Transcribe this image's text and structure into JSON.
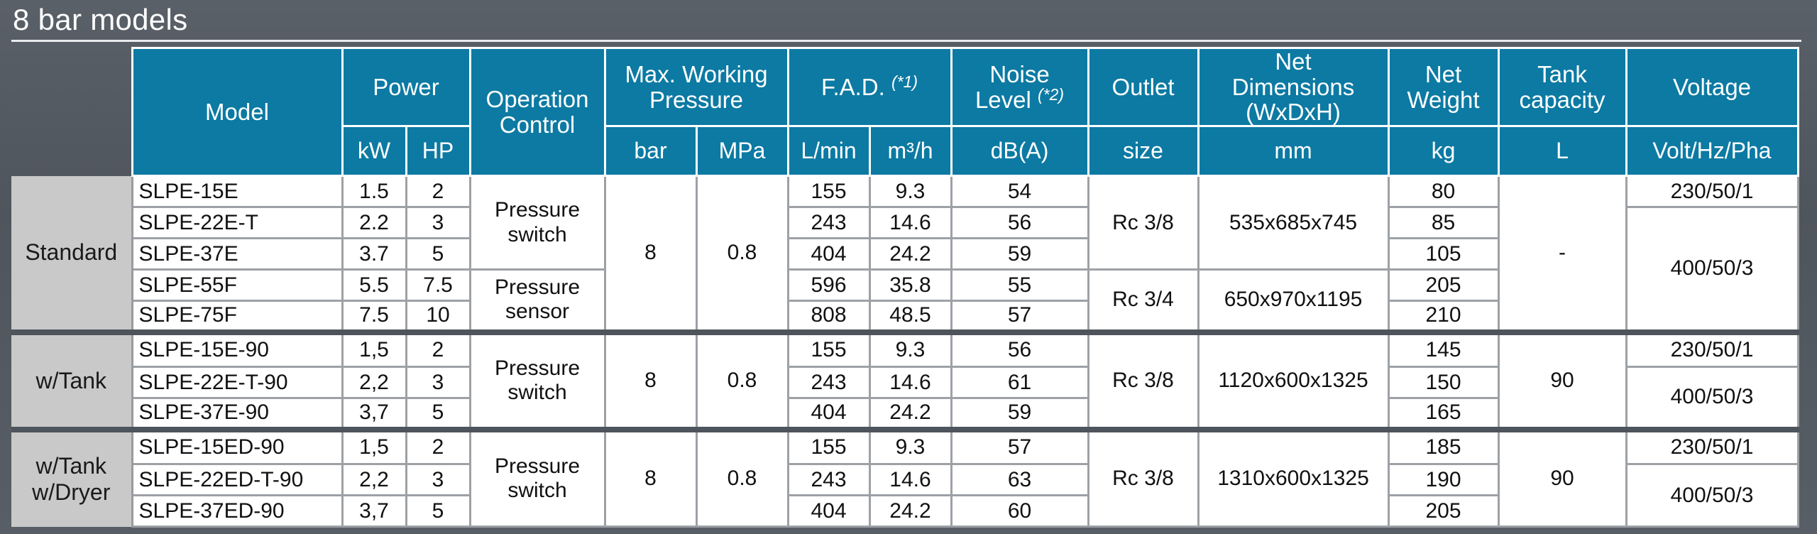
{
  "title": "8 bar models",
  "headers": {
    "model": "Model",
    "power": "Power",
    "power_kw": "kW",
    "power_hp": "HP",
    "operation_control": [
      "Operation",
      "Control"
    ],
    "max_working_pressure": [
      "Max. Working",
      "Pressure"
    ],
    "pressure_bar": "bar",
    "pressure_mpa": "MPa",
    "fad": "F.A.D.",
    "fad_note": "(*1)",
    "fad_lmin": "L/min",
    "fad_m3h": "m³/h",
    "noise": [
      "Noise",
      "Level"
    ],
    "noise_note": "(*2)",
    "noise_unit": "dB(A)",
    "outlet": "Outlet",
    "outlet_unit": "size",
    "net_dimensions": [
      "Net",
      "Dimensions",
      "(WxDxH)"
    ],
    "dimensions_unit": "mm",
    "net_weight": [
      "Net",
      "Weight"
    ],
    "weight_unit": "kg",
    "tank_capacity": [
      "Tank",
      "capacity"
    ],
    "tank_unit": "L",
    "voltage": "Voltage",
    "voltage_unit": "Volt/Hz/Pha"
  },
  "groups": {
    "standard": {
      "label": "Standard",
      "rows": [
        {
          "model": "SLPE-15E",
          "kw": "1.5",
          "hp": "2",
          "lmin": "155",
          "m3h": "9.3",
          "noise": "54",
          "weight": "80"
        },
        {
          "model": "SLPE-22E-T",
          "kw": "2.2",
          "hp": "3",
          "lmin": "243",
          "m3h": "14.6",
          "noise": "56",
          "weight": "85"
        },
        {
          "model": "SLPE-37E",
          "kw": "3.7",
          "hp": "5",
          "lmin": "404",
          "m3h": "24.2",
          "noise": "59",
          "weight": "105"
        },
        {
          "model": "SLPE-55F",
          "kw": "5.5",
          "hp": "7.5",
          "lmin": "596",
          "m3h": "35.8",
          "noise": "55",
          "weight": "205"
        },
        {
          "model": "SLPE-75F",
          "kw": "7.5",
          "hp": "10",
          "lmin": "808",
          "m3h": "48.5",
          "noise": "57",
          "weight": "210"
        }
      ],
      "control_switch": [
        "Pressure",
        "switch"
      ],
      "control_sensor": [
        "Pressure",
        "sensor"
      ],
      "bar": "8",
      "mpa": "0.8",
      "outlet_a": "Rc 3/8",
      "outlet_b": "Rc 3/4",
      "dims_a": "535x685x745",
      "dims_b": "650x970x1195",
      "tank": "-",
      "voltage_a": "230/50/1",
      "voltage_b": "400/50/3"
    },
    "tank": {
      "label": "w/Tank",
      "rows": [
        {
          "model": "SLPE-15E-90",
          "kw": "1,5",
          "hp": "2",
          "lmin": "155",
          "m3h": "9.3",
          "noise": "56",
          "weight": "145"
        },
        {
          "model": "SLPE-22E-T-90",
          "kw": "2,2",
          "hp": "3",
          "lmin": "243",
          "m3h": "14.6",
          "noise": "61",
          "weight": "150"
        },
        {
          "model": "SLPE-37E-90",
          "kw": "3,7",
          "hp": "5",
          "lmin": "404",
          "m3h": "24.2",
          "noise": "59",
          "weight": "165"
        }
      ],
      "control": [
        "Pressure",
        "switch"
      ],
      "bar": "8",
      "mpa": "0.8",
      "outlet": "Rc 3/8",
      "dims": "1120x600x1325",
      "tank": "90",
      "voltage_a": "230/50/1",
      "voltage_b": "400/50/3"
    },
    "dryer": {
      "label": [
        "w/Tank",
        "w/Dryer"
      ],
      "rows": [
        {
          "model": "SLPE-15ED-90",
          "kw": "1,5",
          "hp": "2",
          "lmin": "155",
          "m3h": "9.3",
          "noise": "57",
          "weight": "185"
        },
        {
          "model": "SLPE-22ED-T-90",
          "kw": "2,2",
          "hp": "3",
          "lmin": "243",
          "m3h": "14.6",
          "noise": "63",
          "weight": "190"
        },
        {
          "model": "SLPE-37ED-90",
          "kw": "3,7",
          "hp": "5",
          "lmin": "404",
          "m3h": "24.2",
          "noise": "60",
          "weight": "205"
        }
      ],
      "control": [
        "Pressure",
        "switch"
      ],
      "bar": "8",
      "mpa": "0.8",
      "outlet": "Rc 3/8",
      "dims": "1310x600x1325",
      "tank": "90",
      "voltage_a": "230/50/1",
      "voltage_b": "400/50/3"
    }
  }
}
